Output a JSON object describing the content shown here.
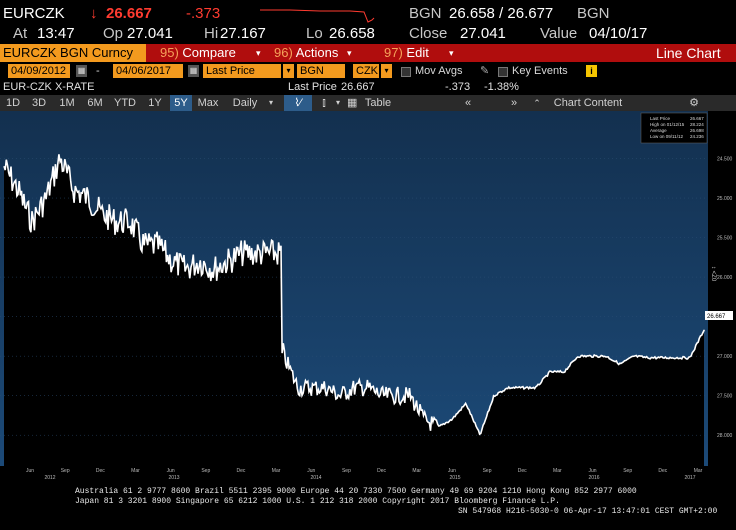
{
  "header": {
    "ticker": "EURCZK",
    "arrow": "↓",
    "last": "26.667",
    "change": "-.373",
    "source": "BGN",
    "bid_ask": "26.658 / 26.677",
    "source2": "BGN",
    "at_label": "At",
    "time": "13:47",
    "op_label": "Op",
    "open": "27.041",
    "hi_label": "Hi",
    "high": "27.167",
    "lo_label": "Lo",
    "low": "26.658",
    "close_label": "Close",
    "close": "27.041",
    "value_label": "Value",
    "value_date": "04/10/17"
  },
  "menu": {
    "security": "EURCZK BGN Curncy",
    "compare_num": "95)",
    "compare": "Compare",
    "actions_num": "96)",
    "actions": "Actions",
    "edit_num": "97)",
    "edit": "Edit",
    "chart_type": "Line Chart"
  },
  "controls": {
    "start_date": "04/09/2012",
    "dash": "-",
    "end_date": "04/06/2017",
    "field": "Last Price",
    "source": "BGN",
    "currency": "CZK",
    "mov_avgs": "Mov Avgs",
    "key_events": "Key Events",
    "info_icon": "i"
  },
  "status": {
    "name": "EUR-CZK X-RATE",
    "last_label": "Last Price",
    "last": "26.667",
    "change": "-.373",
    "pct": "-1.38%"
  },
  "toolbar": {
    "periods": [
      "1D",
      "3D",
      "1M",
      "6M",
      "YTD",
      "1Y",
      "5Y",
      "Max"
    ],
    "selected": "5Y",
    "frequency": "Daily",
    "table": "Table",
    "chart_content": "Chart Content"
  },
  "legend": {
    "last_price_label": "Last Price",
    "last_price": "26.667",
    "high_label": "High on 01/12/15",
    "high": "28.224",
    "average_label": "Average",
    "average": "26.698",
    "low_label": "Low on 09/11/12",
    "low": "24.236"
  },
  "chart_data": {
    "type": "line",
    "title": "",
    "xlabel": "",
    "ylabel": "",
    "y_axis_inverted": true,
    "ylim": [
      24.0,
      28.2
    ],
    "y_ticks": [
      24.5,
      25.0,
      25.5,
      26.0,
      26.5,
      27.0,
      27.5,
      28.0
    ],
    "y_tick_labels": [
      "24.500",
      "25.000",
      "25.500",
      "26.000",
      "26.500",
      "27.000",
      "27.500",
      "28.000"
    ],
    "x_tick_labels": [
      "Jun",
      "Sep",
      "Dec",
      "Mar",
      "Jun",
      "Sep",
      "Dec",
      "Mar",
      "Jun",
      "Sep",
      "Dec",
      "Mar",
      "Jun",
      "Sep",
      "Dec",
      "Mar",
      "Jun",
      "Sep",
      "Dec",
      "Mar"
    ],
    "x_year_labels": [
      "2012",
      "2013",
      "2014",
      "2015",
      "2016",
      "2017"
    ],
    "last_value_label": "26.667",
    "shading": "before intervention and after floor",
    "series": [
      {
        "color": "#ffffff",
        "x": [
          "2012-04",
          "2012-05",
          "2012-06",
          "2012-07",
          "2012-08",
          "2012-09",
          "2012-10",
          "2012-11",
          "2012-12",
          "2013-01",
          "2013-02",
          "2013-03",
          "2013-04",
          "2013-05",
          "2013-06",
          "2013-07",
          "2013-08",
          "2013-09",
          "2013-10",
          "2013-11",
          "2013-11b",
          "2013-12",
          "2014-01",
          "2014-02",
          "2014-03",
          "2014-04",
          "2014-05",
          "2014-06",
          "2014-07",
          "2014-08",
          "2014-09",
          "2014-10",
          "2014-11",
          "2014-12",
          "2015-01",
          "2015-02",
          "2015-03",
          "2015-04",
          "2015-05",
          "2015-06",
          "2015-07",
          "2015-08",
          "2015-09",
          "2015-10",
          "2015-11",
          "2015-12",
          "2016-01",
          "2016-06",
          "2016-12",
          "2017-03",
          "2017-04"
        ],
        "values": [
          24.6,
          24.9,
          25.3,
          25.0,
          24.5,
          24.9,
          25.0,
          25.2,
          25.3,
          25.3,
          25.6,
          25.6,
          25.8,
          25.9,
          25.8,
          25.9,
          25.8,
          25.7,
          25.7,
          25.7,
          27.0,
          27.4,
          27.4,
          27.4,
          27.5,
          27.4,
          27.4,
          27.5,
          27.5,
          27.5,
          27.8,
          27.9,
          27.8,
          27.6,
          28.0,
          27.5,
          27.4,
          27.4,
          27.4,
          27.2,
          27.2,
          27.0,
          27.0,
          27.0,
          27.1,
          27.0,
          27.02,
          27.02,
          27.02,
          27.02,
          26.667
        ]
      }
    ]
  },
  "footer": {
    "line1": "Australia 61 2 9777 8600 Brazil 5511 2395 9000 Europe 44 20 7330 7500 Germany 49 69 9204 1210 Hong Kong 852 2977 6000",
    "line2": "Japan 81 3 3201 8900        Singapore 65 6212 1000        U.S. 1 212 318 2000                Copyright 2017 Bloomberg Finance L.P.",
    "line3": "SN 547968 H216-5030-0 06-Apr-17 13:47:01 CEST GMT+2:00"
  }
}
